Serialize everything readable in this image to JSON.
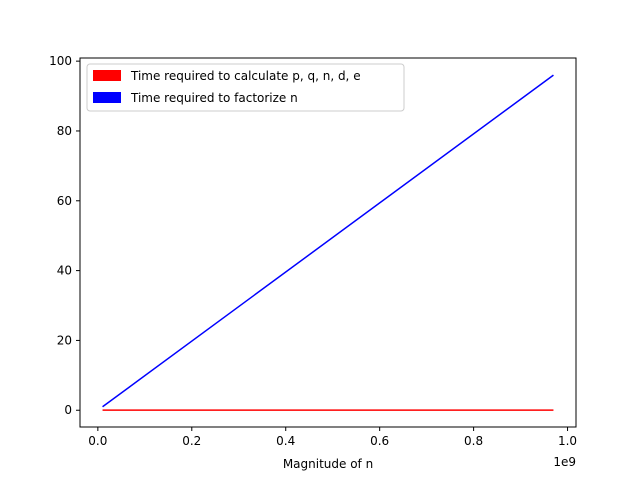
{
  "chart_data": {
    "type": "line",
    "title": "",
    "xlabel": "Magnitude of n",
    "ylabel": "",
    "x_offset_label": "1e9",
    "xlim": [
      -0.038,
      1.018
    ],
    "ylim": [
      -4.8,
      100.9
    ],
    "x_ticks": [
      0.0,
      0.2,
      0.4,
      0.6,
      0.8,
      1.0
    ],
    "x_tick_labels": [
      "0.0",
      "0.2",
      "0.4",
      "0.6",
      "0.8",
      "1.0"
    ],
    "y_ticks": [
      0,
      20,
      40,
      60,
      80,
      100
    ],
    "y_tick_labels": [
      "0",
      "20",
      "40",
      "60",
      "80",
      "100"
    ],
    "grid": false,
    "legend_position": "upper-left",
    "series": [
      {
        "name": "Time required to calculate p, q, n, d, e",
        "color": "#ff0000",
        "x": [
          0.01,
          0.97
        ],
        "y": [
          0.05,
          0.05
        ]
      },
      {
        "name": "Time required to factorize n",
        "color": "#0000ff",
        "x": [
          0.01,
          0.97
        ],
        "y": [
          1.0,
          96.0
        ]
      }
    ]
  }
}
